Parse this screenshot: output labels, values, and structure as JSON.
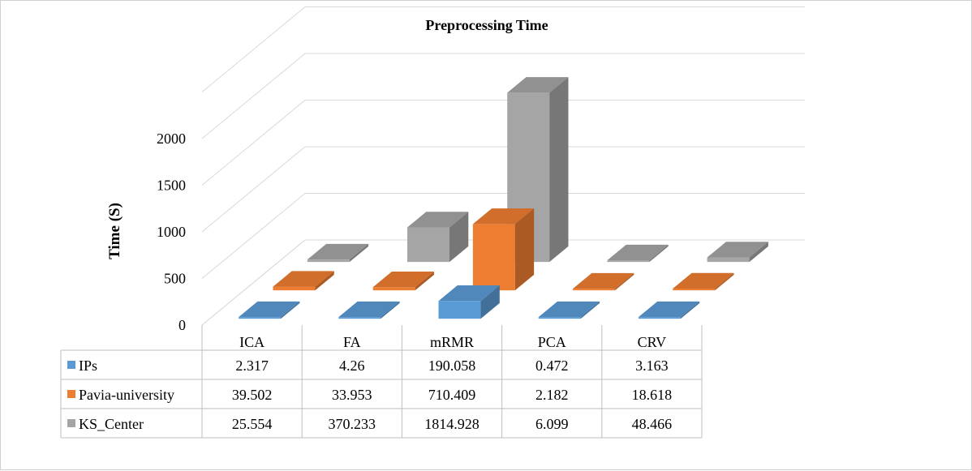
{
  "chart_data": {
    "type": "bar",
    "title": "Preprocessing Time",
    "ylabel": "Time (S)",
    "xlabel": "",
    "ylim": [
      0,
      2500
    ],
    "yticks": [
      0,
      500,
      1000,
      1500,
      2000
    ],
    "categories": [
      "ICA",
      "FA",
      "mRMR",
      "PCA",
      "CRV"
    ],
    "series": [
      {
        "name": "IPs",
        "values": [
          2.317,
          4.26,
          190.058,
          0.472,
          3.163
        ],
        "labels": [
          "2.317",
          "4.26",
          "190.058",
          "0.472",
          "3.163"
        ],
        "color": "#5b9bd5"
      },
      {
        "name": "Pavia-university",
        "values": [
          39.502,
          33.953,
          710.409,
          2.182,
          18.618
        ],
        "labels": [
          "39.502",
          "33.953",
          "710.409",
          "2.182",
          "18.618"
        ],
        "color": "#ed7d31"
      },
      {
        "name": "KS_Center",
        "values": [
          25.554,
          370.233,
          1814.928,
          6.099,
          48.466
        ],
        "labels": [
          "25.554",
          "370.233",
          "1814.928",
          "6.099",
          "48.466"
        ],
        "color": "#a5a5a5"
      }
    ],
    "grid": true,
    "legend": "data-table",
    "chart_style": "3d-column"
  }
}
